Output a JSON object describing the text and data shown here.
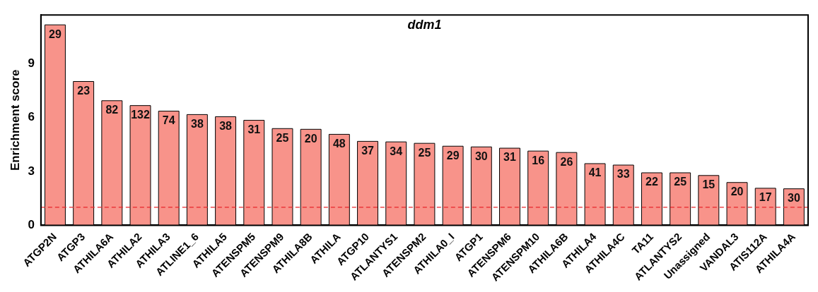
{
  "chart_data": {
    "type": "bar",
    "title": "ddm1",
    "ylabel": "Enrichment score",
    "categories": [
      "ATGP2N",
      "ATGP3",
      "ATHILA6A",
      "ATHILA2",
      "ATHILA3",
      "ATLINE1_6",
      "ATHILA5",
      "ATENSPM5",
      "ATENSPM9",
      "ATHILA8B",
      "ATHILA",
      "ATGP10",
      "ATLANTYS1",
      "ATENSPM2",
      "ATHILA0_I",
      "ATGP1",
      "ATENSPM6",
      "ATENSPM10",
      "ATHILA6B",
      "ATHILA4",
      "ATHILA4C",
      "TA11",
      "ATLANTYS2",
      "Unassigned",
      "VANDAL3",
      "ATIS112A",
      "ATHILA4A"
    ],
    "values": [
      11.15,
      8.0,
      6.93,
      6.66,
      6.35,
      6.16,
      6.04,
      5.84,
      5.38,
      5.34,
      5.06,
      4.67,
      4.64,
      4.56,
      4.4,
      4.36,
      4.29,
      4.13,
      4.05,
      3.43,
      3.35,
      2.92,
      2.92,
      2.77,
      2.38,
      2.06,
      2.03
    ],
    "annotations": [
      {
        "text": "29",
        "x": "ATGP2N",
        "y": 11.15
      },
      {
        "text": "23",
        "x": "ATGP3",
        "y": 8.0
      },
      {
        "text": "82",
        "x": "ATHILA6A",
        "y": 6.93
      },
      {
        "text": "132",
        "x": "ATHILA2",
        "y": 6.66
      },
      {
        "text": "74",
        "x": "ATHILA3",
        "y": 6.35
      },
      {
        "text": "38",
        "x": "ATLINE1_6",
        "y": 6.16
      },
      {
        "text": "38",
        "x": "ATHILA5",
        "y": 6.04
      },
      {
        "text": "31",
        "x": "ATENSPM5",
        "y": 5.84
      },
      {
        "text": "25",
        "x": "ATENSPM9",
        "y": 5.38
      },
      {
        "text": "20",
        "x": "ATHILA8B",
        "y": 5.34
      },
      {
        "text": "48",
        "x": "ATHILA",
        "y": 5.06
      },
      {
        "text": "37",
        "x": "ATGP10",
        "y": 4.67
      },
      {
        "text": "34",
        "x": "ATLANTYS1",
        "y": 4.64
      },
      {
        "text": "25",
        "x": "ATENSPM2",
        "y": 4.56
      },
      {
        "text": "29",
        "x": "ATHILA0_I",
        "y": 4.4
      },
      {
        "text": "30",
        "x": "ATGP1",
        "y": 4.36
      },
      {
        "text": "31",
        "x": "ATENSPM6",
        "y": 4.29
      },
      {
        "text": "16",
        "x": "ATENSPM10",
        "y": 4.13
      },
      {
        "text": "26",
        "x": "ATHILA6B",
        "y": 4.05
      },
      {
        "text": "41",
        "x": "ATHILA4",
        "y": 3.43
      },
      {
        "text": "33",
        "x": "ATHILA4C",
        "y": 3.35
      },
      {
        "text": "22",
        "x": "TA11",
        "y": 2.92
      },
      {
        "text": "25",
        "x": "ATLANTYS2",
        "y": 2.92
      },
      {
        "text": "15",
        "x": "Unassigned",
        "y": 2.77
      },
      {
        "text": "20",
        "x": "VANDAL3",
        "y": 2.38
      },
      {
        "text": "17",
        "x": "ATIS112A",
        "y": 2.06
      },
      {
        "text": "30",
        "x": "ATHILA4A",
        "y": 2.03
      }
    ],
    "color": "#f8938a",
    "ylim": [
      0,
      11.7
    ],
    "yticks": [
      0,
      3,
      6,
      9
    ],
    "grid": false,
    "legend": false,
    "ref_lines": [
      {
        "axis": "y",
        "value": 1,
        "color": "#e8262a",
        "line_style": "dashed"
      }
    ]
  }
}
